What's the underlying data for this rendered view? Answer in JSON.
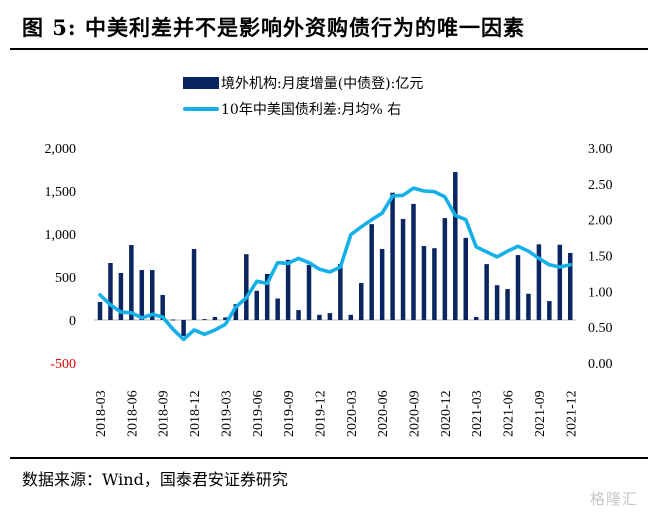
{
  "header": {
    "title": "图 5:  中美利差并不是影响外资购债行为的唯一因素"
  },
  "footer": {
    "source": "数据来源：Wind，国泰君安证券研究",
    "watermark": "格隆汇"
  },
  "colors": {
    "bar": "#0b2560",
    "line": "#16b0e8",
    "axis": "#d0d0d0",
    "negative_tick": "#e00000"
  },
  "chart_data": {
    "type": "bar+line",
    "title": "中美利差并不是影响外资购债行为的唯一因素",
    "legend_position": "top-center",
    "grid": false,
    "x": [
      "2018-03",
      "2018-04",
      "2018-05",
      "2018-06",
      "2018-07",
      "2018-08",
      "2018-09",
      "2018-10",
      "2018-11",
      "2018-12",
      "2019-01",
      "2019-02",
      "2019-03",
      "2019-04",
      "2019-05",
      "2019-06",
      "2019-07",
      "2019-08",
      "2019-09",
      "2019-10",
      "2019-11",
      "2019-12",
      "2020-01",
      "2020-02",
      "2020-03",
      "2020-04",
      "2020-05",
      "2020-06",
      "2020-07",
      "2020-08",
      "2020-09",
      "2020-10",
      "2020-11",
      "2020-12",
      "2021-01",
      "2021-02",
      "2021-03",
      "2021-04",
      "2021-05",
      "2021-06",
      "2021-07",
      "2021-08",
      "2021-09",
      "2021-10",
      "2021-11",
      "2021-12"
    ],
    "x_tick_labels": [
      "2018-03",
      "2018-06",
      "2018-09",
      "2018-12",
      "2019-03",
      "2019-06",
      "2019-09",
      "2019-12",
      "2020-03",
      "2020-06",
      "2020-09",
      "2020-12",
      "2021-03",
      "2021-06",
      "2021-09",
      "2021-12"
    ],
    "series": [
      {
        "name": "境外机构:月度增量(中债登):亿元",
        "type": "bar",
        "axis": "left",
        "values": [
          210,
          663,
          547,
          872,
          581,
          581,
          291,
          5,
          -186,
          826,
          10,
          35,
          30,
          185,
          765,
          340,
          535,
          250,
          700,
          115,
          640,
          60,
          80,
          650,
          60,
          430,
          1115,
          825,
          1480,
          1175,
          1350,
          860,
          835,
          1185,
          1720,
          955,
          35,
          650,
          405,
          360,
          755,
          305,
          880,
          220,
          875,
          780
        ]
      },
      {
        "name": "10年中美国债利差:月均% 右",
        "type": "line",
        "axis": "right",
        "values": [
          0.95,
          0.81,
          0.71,
          0.7,
          0.63,
          0.68,
          0.64,
          0.47,
          0.33,
          0.46,
          0.4,
          0.46,
          0.54,
          0.78,
          0.91,
          1.14,
          1.11,
          1.4,
          1.39,
          1.46,
          1.4,
          1.31,
          1.27,
          1.34,
          1.79,
          1.9,
          2.0,
          2.09,
          2.33,
          2.34,
          2.44,
          2.4,
          2.39,
          2.32,
          2.06,
          2.0,
          1.62,
          1.55,
          1.48,
          1.56,
          1.63,
          1.56,
          1.46,
          1.37,
          1.34,
          1.37
        ]
      }
    ],
    "y_left": {
      "label": "",
      "range": [
        -500,
        2000
      ],
      "ticks": [
        2000,
        1500,
        1000,
        500,
        0,
        -500
      ],
      "tick_labels": [
        "2,000",
        "1,500",
        "1,000",
        "500",
        "0",
        "-500"
      ]
    },
    "y_right": {
      "label": "",
      "range": [
        0,
        3
      ],
      "ticks": [
        3,
        2.5,
        2,
        1.5,
        1,
        0.5,
        0
      ],
      "tick_labels": [
        "3.00",
        "2.50",
        "2.00",
        "1.50",
        "1.00",
        "0.50",
        "0.00"
      ]
    },
    "xlabel": "",
    "ylabel": ""
  }
}
